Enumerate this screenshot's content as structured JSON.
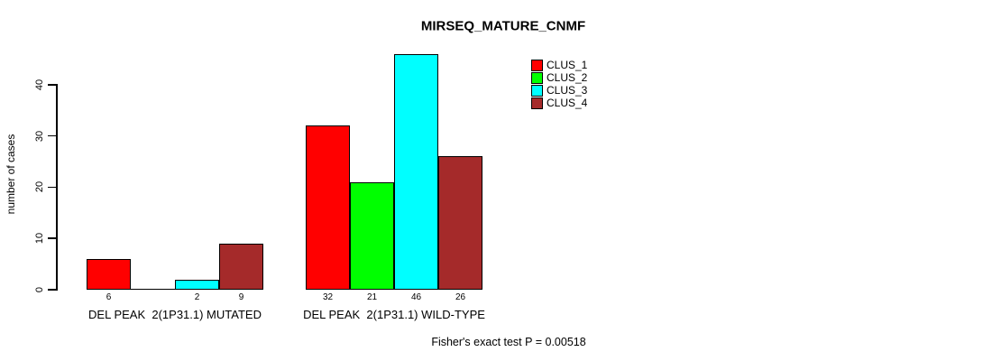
{
  "title": "MIRSEQ_MATURE_CNMF",
  "footer": "Fisher's exact test P = 0.00518",
  "axis": {
    "ylabel": "number of cases",
    "yticks": [
      "0",
      "10",
      "20",
      "30",
      "40"
    ]
  },
  "legend": {
    "entries": [
      {
        "label": "CLUS_1",
        "color": "#FF0000"
      },
      {
        "label": "CLUS_2",
        "color": "#00FF00"
      },
      {
        "label": "CLUS_3",
        "color": "#00FFFF"
      },
      {
        "label": "CLUS_4",
        "color": "#A52A2A"
      }
    ]
  },
  "chart_data": {
    "type": "bar",
    "title": "MIRSEQ_MATURE_CNMF",
    "ylabel": "number of cases",
    "xlabel": "",
    "yticks": [
      0,
      10,
      20,
      30,
      40
    ],
    "ylim": [
      0,
      46
    ],
    "grid": false,
    "legend_position": "top-right",
    "series": [
      "CLUS_1",
      "CLUS_2",
      "CLUS_3",
      "CLUS_4"
    ],
    "series_colors": [
      "#FF0000",
      "#00FF00",
      "#00FFFF",
      "#A52A2A"
    ],
    "groups": [
      {
        "label": "DEL PEAK  2(1P31.1) MUTATED",
        "values": [
          6,
          0,
          2,
          9
        ],
        "value_labels": [
          "6",
          "",
          "2",
          "9"
        ]
      },
      {
        "label": "DEL PEAK  2(1P31.1) WILD-TYPE",
        "values": [
          32,
          21,
          46,
          26
        ],
        "value_labels": [
          "32",
          "21",
          "46",
          "26"
        ]
      }
    ],
    "annotation": "Fisher's exact test P = 0.00518"
  }
}
